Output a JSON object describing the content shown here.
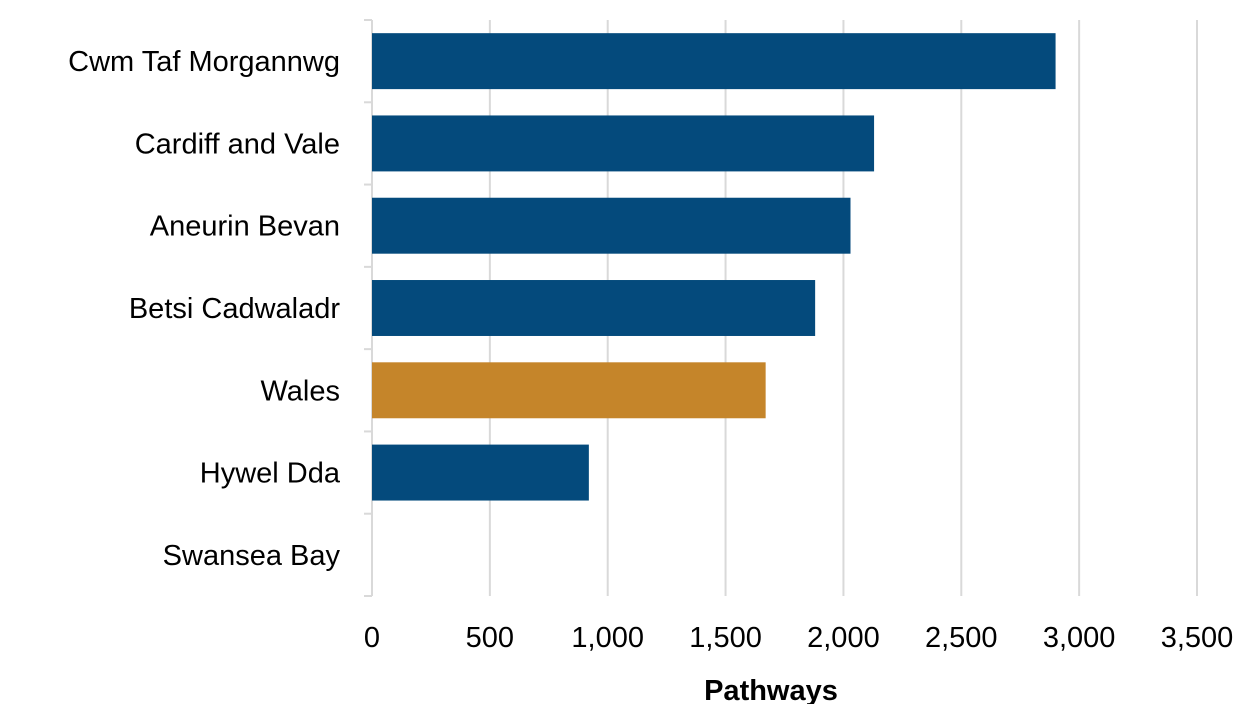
{
  "chart_data": {
    "type": "bar",
    "orientation": "horizontal",
    "categories": [
      "Cwm Taf Morgannwg",
      "Cardiff and Vale",
      "Aneurin Bevan",
      "Betsi Cadwaladr",
      "Wales",
      "Hywel Dda",
      "Swansea Bay"
    ],
    "values": [
      2900,
      2130,
      2030,
      1880,
      1670,
      920,
      0
    ],
    "bar_colors": [
      "#044a7c",
      "#044a7c",
      "#044a7c",
      "#044a7c",
      "#c5852a",
      "#044a7c",
      "#044a7c"
    ],
    "xlabel": "Pathways",
    "ylabel": "",
    "xlim": [
      0,
      3500
    ],
    "x_ticks": [
      0,
      500,
      1000,
      1500,
      2000,
      2500,
      3000,
      3500
    ],
    "x_tick_labels": [
      "0",
      "500",
      "1,000",
      "1,500",
      "2,000",
      "2,500",
      "3,000",
      "3,500"
    ],
    "grid": true,
    "colors": {
      "primary": "#044a7c",
      "highlight": "#c5852a",
      "grid": "#d9d9d9"
    }
  }
}
